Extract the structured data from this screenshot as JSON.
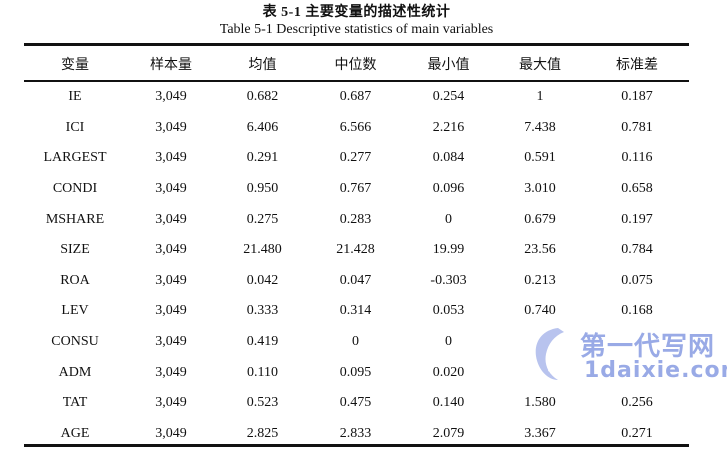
{
  "caption": {
    "chinese": "表 5-1  主要变量的描述性统计",
    "english": "Table 5-1 Descriptive statistics of main variables"
  },
  "table": {
    "headers": [
      "变量",
      "样本量",
      "均值",
      "中位数",
      "最小值",
      "最大值",
      "标准差"
    ],
    "rows": [
      [
        "IE",
        "3,049",
        "0.682",
        "0.687",
        "0.254",
        "1",
        "0.187"
      ],
      [
        "ICI",
        "3,049",
        "6.406",
        "6.566",
        "2.216",
        "7.438",
        "0.781"
      ],
      [
        "LARGEST",
        "3,049",
        "0.291",
        "0.277",
        "0.084",
        "0.591",
        "0.116"
      ],
      [
        "CONDI",
        "3,049",
        "0.950",
        "0.767",
        "0.096",
        "3.010",
        "0.658"
      ],
      [
        "MSHARE",
        "3,049",
        "0.275",
        "0.283",
        "0",
        "0.679",
        "0.197"
      ],
      [
        "SIZE",
        "3,049",
        "21.480",
        "21.428",
        "19.99",
        "23.56",
        "0.784"
      ],
      [
        "ROA",
        "3,049",
        "0.042",
        "0.047",
        "-0.303",
        "0.213",
        "0.075"
      ],
      [
        "LEV",
        "3,049",
        "0.333",
        "0.314",
        "0.053",
        "0.740",
        "0.168"
      ],
      [
        "CONSU",
        "3,049",
        "0.419",
        "0",
        "0",
        "",
        ""
      ],
      [
        "ADM",
        "3,049",
        "0.110",
        "0.095",
        "0.020",
        "",
        ""
      ],
      [
        "TAT",
        "3,049",
        "0.523",
        "0.475",
        "0.140",
        "1.580",
        "0.256"
      ],
      [
        "AGE",
        "3,049",
        "2.825",
        "2.833",
        "2.079",
        "3.367",
        "0.271"
      ]
    ]
  },
  "watermark": {
    "line1": "第一代写网",
    "line2": "1daixie.com",
    "color": "#4664d2"
  }
}
